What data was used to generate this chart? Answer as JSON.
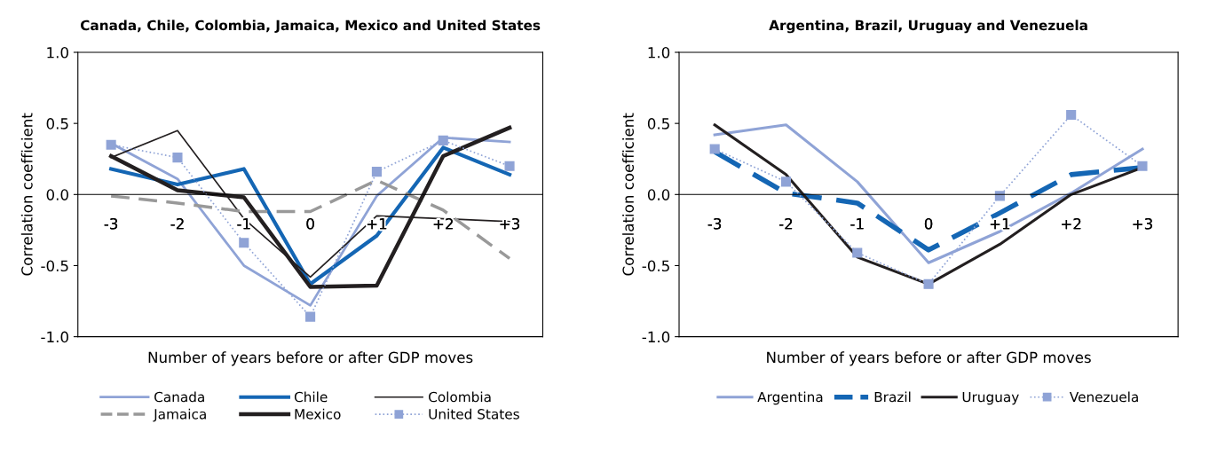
{
  "chart_data": [
    {
      "type": "line",
      "title": "Canada, Chile, Colombia, Jamaica, Mexico and United States",
      "xlabel": "Number of years before or after GDP moves",
      "ylabel": "Correlation coefficient",
      "categories": [
        "-3",
        "-2",
        "-1",
        "0",
        "+1",
        "+2",
        "+3"
      ],
      "ylim": [
        -1.0,
        1.0
      ],
      "yticks": [
        {
          "value": -1.0,
          "label": "-1.0"
        },
        {
          "value": -0.5,
          "label": "-0.5"
        },
        {
          "value": 0,
          "label": "0.0"
        },
        {
          "value": 0.5,
          "label": "0.5"
        },
        {
          "value": 1.0,
          "label": "1.0"
        }
      ],
      "grid": false,
      "legend": "bottom",
      "series": [
        {
          "name": "Canada",
          "color": "#8fa3d6",
          "line_style": "solid",
          "values": [
            0.36,
            0.11,
            -0.5,
            -0.78,
            -0.01,
            0.4,
            0.37
          ]
        },
        {
          "name": "Chile",
          "color": "#1466b4",
          "line_style": "solid",
          "values": [
            0.18,
            0.07,
            0.18,
            -0.63,
            -0.29,
            0.33,
            0.14
          ]
        },
        {
          "name": "Colombia",
          "color": "#231f20",
          "line_style": "solid",
          "values": [
            0.26,
            0.45,
            -0.17,
            -0.58,
            -0.15,
            -0.17,
            -0.19
          ]
        },
        {
          "name": "Jamaica",
          "color": "#999999",
          "line_style": "dashed",
          "values": [
            -0.01,
            -0.06,
            -0.12,
            -0.12,
            0.1,
            -0.11,
            -0.45
          ]
        },
        {
          "name": "Mexico",
          "color": "#231f20",
          "line_style": "solid",
          "values": [
            0.27,
            0.03,
            -0.02,
            -0.65,
            -0.64,
            0.27,
            0.47
          ]
        },
        {
          "name": "United States",
          "color": "#8fa3d6",
          "line_style": "dotted",
          "marker": "square",
          "values": [
            0.35,
            0.26,
            -0.34,
            -0.86,
            0.16,
            0.38,
            0.2
          ]
        }
      ]
    },
    {
      "type": "line",
      "title": "Argentina, Brazil, Uruguay and Venezuela",
      "xlabel": "Number of years before or after GDP moves",
      "ylabel": "Correlation coefficient",
      "categories": [
        "-3",
        "-2",
        "-1",
        "0",
        "+1",
        "+2",
        "+3"
      ],
      "ylim": [
        -1.0,
        1.0
      ],
      "yticks": [
        {
          "value": -1.0,
          "label": "-1.0"
        },
        {
          "value": -0.5,
          "label": "-0.5"
        },
        {
          "value": 0,
          "label": "0.0"
        },
        {
          "value": 0.5,
          "label": "0.5"
        },
        {
          "value": 1.0,
          "label": "1.0"
        }
      ],
      "grid": false,
      "legend": "bottom",
      "series": [
        {
          "name": "Argentina",
          "color": "#8fa3d6",
          "line_style": "solid",
          "values": [
            0.42,
            0.49,
            0.09,
            -0.48,
            -0.26,
            0.01,
            0.32
          ]
        },
        {
          "name": "Brazil",
          "color": "#1466b4",
          "line_style": "dashed",
          "values": [
            0.3,
            0.01,
            -0.06,
            -0.39,
            -0.13,
            0.14,
            0.19
          ]
        },
        {
          "name": "Uruguay",
          "color": "#231f20",
          "line_style": "solid",
          "values": [
            0.49,
            0.14,
            -0.44,
            -0.63,
            -0.35,
            0.0,
            0.19
          ]
        },
        {
          "name": "Venezuela",
          "color": "#8fa3d6",
          "line_style": "dotted",
          "marker": "square",
          "values": [
            0.32,
            0.09,
            -0.41,
            -0.63,
            -0.01,
            0.56,
            0.2
          ]
        }
      ]
    }
  ]
}
